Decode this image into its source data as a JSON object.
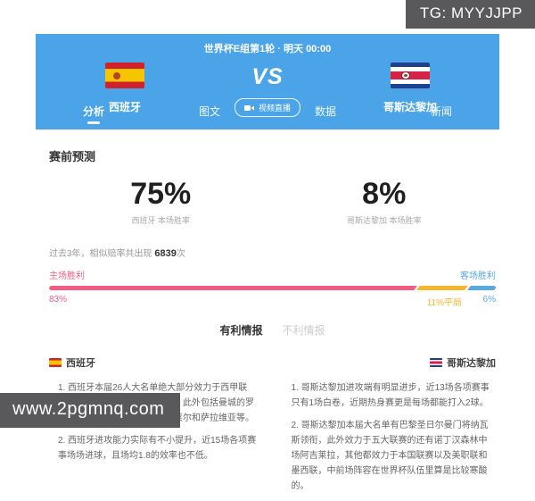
{
  "watermarks": {
    "top_right": "TG: MYYJJPP",
    "bottom_left": "www.2pgmnq.com"
  },
  "header": {
    "match_info": "世界杯E组第1轮 · 明天 00:00",
    "home_team": "西班牙",
    "away_team": "哥斯达黎加",
    "vs_label": "VS",
    "live_button_label": "视频直播",
    "tabs": [
      {
        "label": "分析",
        "active": true
      },
      {
        "label": "图文",
        "active": false
      },
      {
        "label": "数据",
        "active": false
      },
      {
        "label": "新闻",
        "active": false
      }
    ],
    "colors": {
      "card_bg": "#4aa4e7"
    }
  },
  "prediction": {
    "title": "赛前预测",
    "home_pct": "75%",
    "home_caption": "西班牙 本场胜率",
    "away_pct": "8%",
    "away_caption": "哥斯达黎加 本场胜率",
    "history_prefix": "过去3年，相似赔率共出现 ",
    "history_count": "6839",
    "history_suffix": "次"
  },
  "win_bar": {
    "home_label": "主场胜利",
    "away_label": "客场胜利",
    "home_pct_label": "83%",
    "draw_pct_label": "11%平局",
    "away_pct_label": "6%",
    "home_value": 83,
    "draw_value": 11,
    "away_value": 6,
    "colors": {
      "home": "#f25c84",
      "draw": "#f7b52c",
      "away": "#57aadf"
    }
  },
  "intel": {
    "tabs": [
      {
        "label": "有利情报",
        "active": true
      },
      {
        "label": "不利情报",
        "active": false
      }
    ],
    "home": {
      "team": "西班牙",
      "point1": "1. 西班牙本届26人大名单绝大部分效力于西甲联赛，其中皇马和巴萨贡献最多，此外包括曼城的罗德里，以及巴黎圣日尔曼的索莱尔和萨拉维亚等。",
      "point2": "2. 西班牙进攻能力实际有不小提升，近15场各项赛事场场进球，且场均1.8的效率也不低。"
    },
    "away": {
      "team": "哥斯达黎加",
      "point1": "1. 哥斯达黎加进攻端有明显进步，近13场各项赛事只有1场白卷，近期热身赛更是每场都能打入2球。",
      "point2": "2. 哥斯达黎加本届大名单有巴黎圣日尔曼门将纳瓦斯领衔，此外效力于五大联赛的还有诺丁汉森林中场阿吉莱拉，其他都效力于本国联赛以及美职联和墨西联，中前场阵容在世界杯队伍里算是比较寒酸的。"
    }
  }
}
